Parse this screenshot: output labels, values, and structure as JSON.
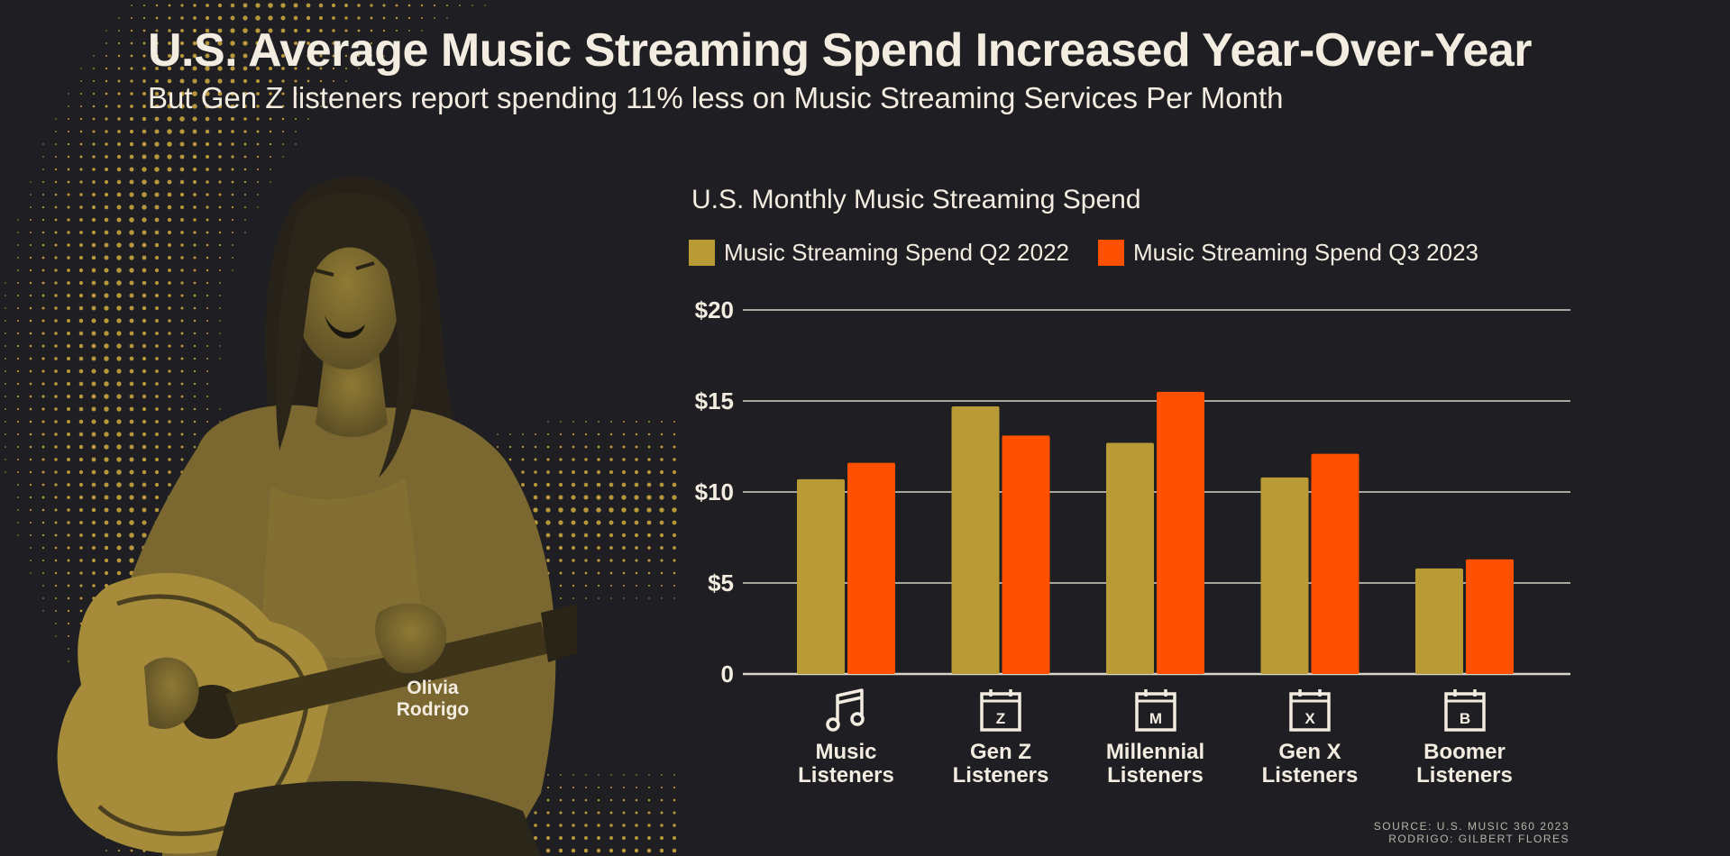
{
  "header": {
    "title": "U.S. Average Music Streaming Spend Increased Year-Over-Year",
    "subtitle": "But Gen Z listeners report spending 11% less on Music Streaming Services Per Month"
  },
  "photo": {
    "caption_line1": "Olivia",
    "caption_line2": "Rodrigo"
  },
  "source": {
    "line1": "SOURCE: U.S. MUSIC 360 2023",
    "line2": "RODRIGO: GILBERT FLORES"
  },
  "colors": {
    "background": "#1f1f23",
    "gold": "#b89b35",
    "orange": "#ff5000",
    "text": "#f3ece0",
    "grid": "#d9d4c8"
  },
  "chart_data": {
    "type": "bar",
    "title": "U.S. Monthly Music Streaming Spend",
    "categories": [
      {
        "line1": "Music",
        "line2": "Listeners",
        "icon": "music-note-icon",
        "letter": ""
      },
      {
        "line1": "Gen Z",
        "line2": "Listeners",
        "icon": "calendar-z-icon",
        "letter": "Z"
      },
      {
        "line1": "Millennial",
        "line2": "Listeners",
        "icon": "calendar-m-icon",
        "letter": "M"
      },
      {
        "line1": "Gen X",
        "line2": "Listeners",
        "icon": "calendar-x-icon",
        "letter": "X"
      },
      {
        "line1": "Boomer",
        "line2": "Listeners",
        "icon": "calendar-b-icon",
        "letter": "B"
      }
    ],
    "series": [
      {
        "name": "Music Streaming Spend Q2 2022",
        "color": "#b89b35",
        "values": [
          10.7,
          14.7,
          12.7,
          10.8,
          5.8
        ]
      },
      {
        "name": "Music Streaming Spend Q3 2023",
        "color": "#ff5000",
        "values": [
          11.6,
          13.1,
          15.5,
          12.1,
          6.3
        ]
      }
    ],
    "yticks": [
      {
        "value": 0,
        "label": "0"
      },
      {
        "value": 5,
        "label": "$5"
      },
      {
        "value": 10,
        "label": "$10"
      },
      {
        "value": 15,
        "label": "$15"
      },
      {
        "value": 20,
        "label": "$20"
      }
    ],
    "ylim": [
      0,
      20
    ],
    "legend_position": "top-left"
  }
}
